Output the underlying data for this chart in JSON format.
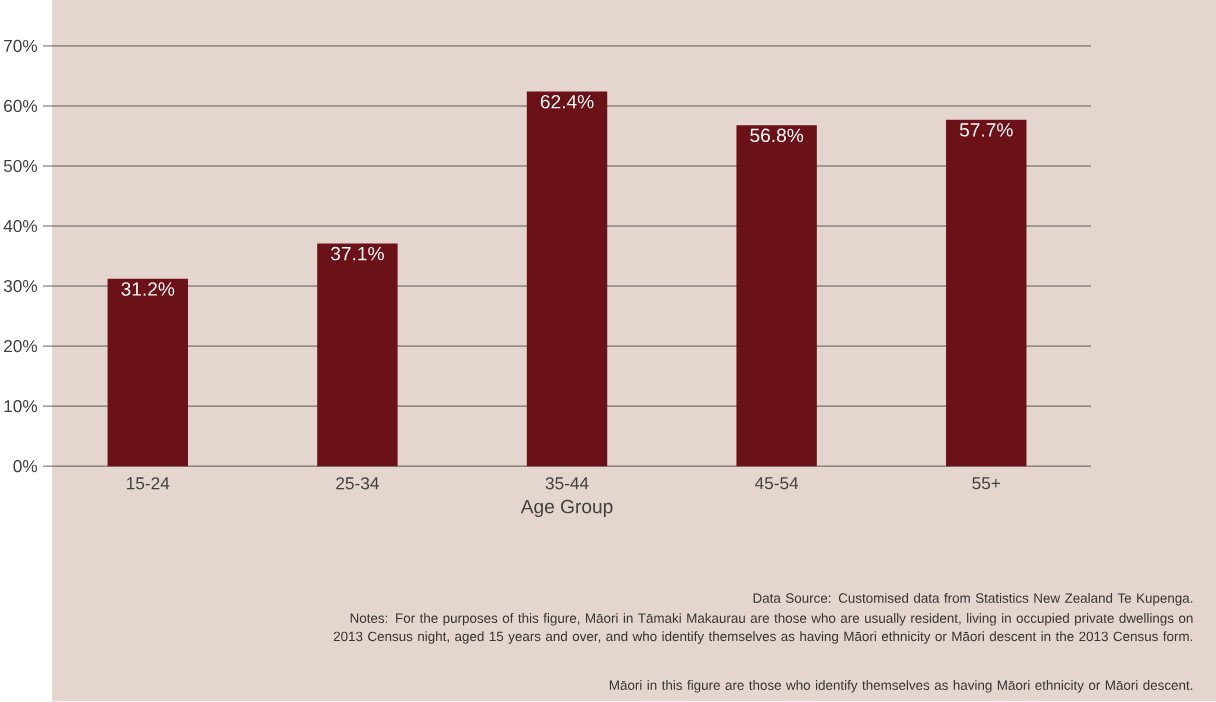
{
  "chart_data": {
    "type": "bar",
    "categories": [
      "15-24",
      "25-34",
      "35-44",
      "45-54",
      "55+"
    ],
    "values": [
      31.2,
      37.1,
      62.4,
      56.8,
      57.7
    ],
    "value_labels": [
      "31.2%",
      "37.1%",
      "62.4%",
      "56.8%",
      "57.7%"
    ],
    "color": "#6b1118",
    "xlabel": "Age Group",
    "ylim": [
      0,
      70
    ],
    "yticks": [
      {
        "value": 0,
        "label": "0%"
      },
      {
        "value": 10,
        "label": "10%"
      },
      {
        "value": 20,
        "label": "20%"
      },
      {
        "value": 30,
        "label": "30%"
      },
      {
        "value": 40,
        "label": "40%"
      },
      {
        "value": 50,
        "label": "50%"
      },
      {
        "value": 60,
        "label": "60%"
      },
      {
        "value": 70,
        "label": "70%"
      }
    ],
    "grid": "y",
    "annotations": [
      "Data Source: Customised data from Statistics New Zealand Te Kupenga.",
      "Notes: For the purposes of this figure, Māori in Tāmaki Makaurau are those who are usually resident, living in occupied private dwellings on 2013 Census night, aged 15 years and over, and who identify themselves as having Māori ethnicity or Māori descent in the 2013 Census form.",
      "Māori in this figure are those who identify themselves as having Māori ethnicity or Māori descent."
    ]
  }
}
